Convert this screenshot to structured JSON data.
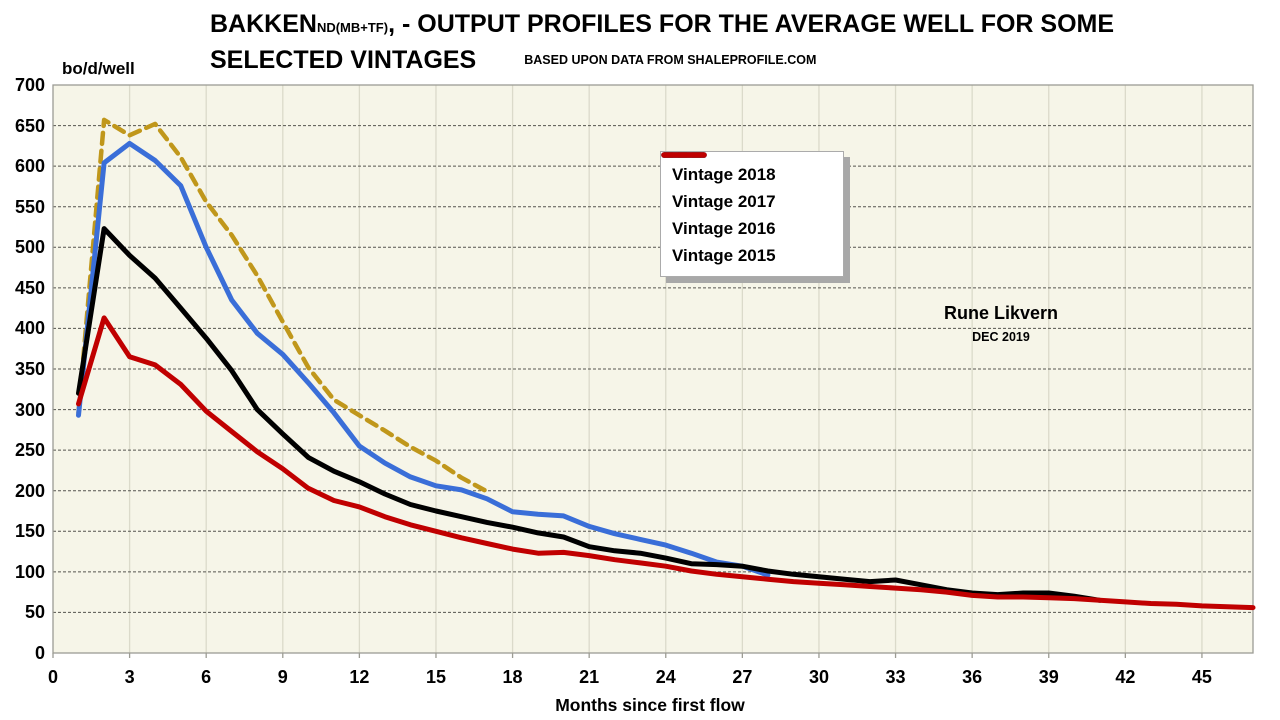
{
  "title": {
    "main": "BAKKEN",
    "subscript": "ND(MB+TF)",
    "rest": ", - OUTPUT PROFILES FOR THE AVERAGE WELL FOR SOME",
    "line2": "SELECTED VINTAGES",
    "source_note": "BASED UPON DATA FROM SHALEPROFILE.COM"
  },
  "annotation": {
    "author": "Rune Likvern",
    "date": "DEC 2019"
  },
  "y_axis_unit": "bo/d/well",
  "chart_data": {
    "type": "line",
    "title": "BAKKEN ND(MB+TF), - OUTPUT PROFILES FOR THE AVERAGE WELL FOR SOME SELECTED VINTAGES",
    "subtitle": "BASED UPON DATA FROM SHALEPROFILE.COM",
    "xlabel": "Months since first flow",
    "ylabel": "bo/d/well",
    "x_range": [
      0,
      47
    ],
    "y_range": [
      0,
      700
    ],
    "x_ticks": [
      0,
      3,
      6,
      9,
      12,
      15,
      18,
      21,
      24,
      27,
      30,
      33,
      36,
      39,
      42,
      45
    ],
    "y_ticks": [
      0,
      50,
      100,
      150,
      200,
      250,
      300,
      350,
      400,
      450,
      500,
      550,
      600,
      650,
      700
    ],
    "grid": {
      "horizontal": "dashed",
      "vertical": "solid"
    },
    "legend_position": "upper-middle",
    "plot_bg": "#f6f5e8",
    "v_grid_color": "#dbdaca",
    "h_grid_color": "#55554f",
    "border_color": "#9c9c94",
    "series": [
      {
        "name": "Vintage 2018",
        "color": "#c0971b",
        "style": "dashed",
        "width": 4.5,
        "start_month": 1,
        "values": [
          296,
          657,
          638,
          652,
          611,
          556,
          515,
          465,
          408,
          352,
          312,
          293,
          274,
          254,
          237,
          216,
          199
        ]
      },
      {
        "name": "Vintage 2017",
        "color": "#3a6ed8",
        "style": "solid",
        "width": 5,
        "start_month": 1,
        "values": [
          293,
          604,
          628,
          607,
          576,
          500,
          435,
          394,
          368,
          333,
          296,
          255,
          234,
          217,
          206,
          201,
          190,
          174,
          171,
          169,
          156,
          147,
          140,
          133,
          123,
          112,
          107,
          96
        ]
      },
      {
        "name": "Vintage 2016",
        "color": "#000000",
        "style": "solid",
        "width": 5,
        "start_month": 1,
        "values": [
          320,
          523,
          490,
          462,
          425,
          388,
          348,
          300,
          270,
          241,
          224,
          211,
          196,
          183,
          175,
          168,
          161,
          155,
          148,
          143,
          131,
          126,
          123,
          117,
          110,
          109,
          107,
          101,
          97,
          94,
          91,
          88,
          90,
          84,
          78,
          74,
          72,
          74,
          74,
          70,
          65
        ]
      },
      {
        "name": "Vintage 2015",
        "color": "#c00000",
        "style": "solid",
        "width": 5,
        "start_month": 1,
        "values": [
          307,
          413,
          365,
          355,
          331,
          298,
          273,
          248,
          227,
          203,
          188,
          180,
          168,
          158,
          150,
          142,
          135,
          128,
          123,
          124,
          120,
          115,
          111,
          107,
          101,
          97,
          94,
          91,
          88,
          86,
          84,
          82,
          80,
          78,
          75,
          71,
          69,
          69,
          68,
          67,
          65,
          63,
          61,
          60,
          58,
          57,
          56
        ]
      }
    ]
  }
}
